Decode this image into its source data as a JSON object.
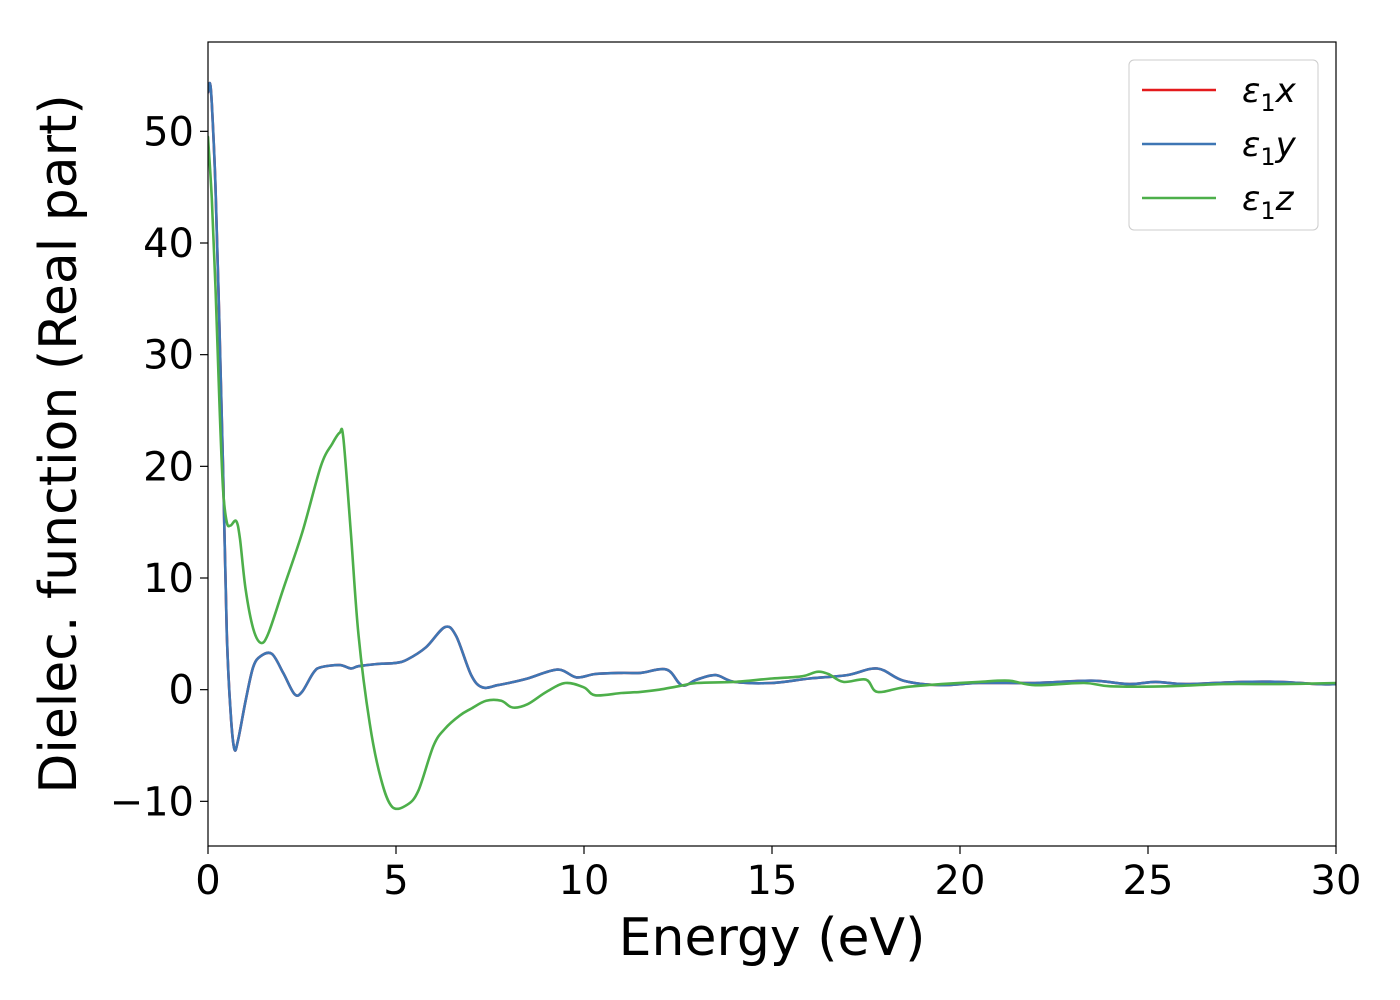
{
  "chart_data": {
    "type": "line",
    "title": "",
    "xlabel": "Energy (eV)",
    "ylabel": "Dielec. function (Real part)",
    "xlim": [
      0,
      30
    ],
    "ylim": [
      -14,
      58
    ],
    "xticks": [
      0,
      5,
      10,
      15,
      20,
      25,
      30
    ],
    "xtick_labels": [
      "0",
      "5",
      "10",
      "15",
      "20",
      "25",
      "30"
    ],
    "yticks": [
      -10,
      0,
      10,
      20,
      30,
      40,
      50
    ],
    "ytick_labels": [
      "−10",
      "0",
      "10",
      "20",
      "30",
      "40",
      "50"
    ],
    "grid": false,
    "legend_position": "top-right",
    "series": [
      {
        "name": "ε₁x",
        "name_base": "ε",
        "name_sub": "1",
        "name_var": "x",
        "color": "#e41a1c",
        "x": [
          0,
          0.05,
          0.1,
          0.2,
          0.3,
          0.4,
          0.5,
          0.6,
          0.7,
          0.8,
          1.0,
          1.2,
          1.4,
          1.7,
          2.0,
          2.3,
          2.5,
          2.8,
          3.0,
          3.5,
          3.8,
          4.0,
          4.5,
          5.0,
          5.3,
          5.8,
          6.3,
          6.6,
          7.0,
          7.3,
          7.7,
          8.0,
          8.5,
          9.3,
          9.8,
          10.3,
          11.0,
          11.5,
          12.2,
          12.6,
          13.0,
          13.5,
          14.0,
          15.0,
          16.0,
          17.0,
          17.8,
          18.5,
          19.5,
          20.5,
          22.0,
          23.5,
          24.5,
          25.2,
          26.0,
          27.5,
          28.5,
          29.5,
          30.0
        ],
        "y": [
          53.5,
          54.3,
          52.5,
          45,
          33,
          20,
          5,
          -2,
          -5.3,
          -4.5,
          -1,
          2,
          3,
          3.2,
          1.5,
          -0.4,
          -0.2,
          1.5,
          2.0,
          2.2,
          1.9,
          2.1,
          2.3,
          2.4,
          2.7,
          3.8,
          5.6,
          4.8,
          1.3,
          0.2,
          0.4,
          0.6,
          1.0,
          1.8,
          1.1,
          1.4,
          1.5,
          1.5,
          1.8,
          0.4,
          0.9,
          1.3,
          0.7,
          0.6,
          1.0,
          1.3,
          1.9,
          0.8,
          0.4,
          0.6,
          0.6,
          0.8,
          0.5,
          0.7,
          0.5,
          0.7,
          0.7,
          0.5,
          0.5
        ]
      },
      {
        "name": "ε₁y",
        "name_base": "ε",
        "name_sub": "1",
        "name_var": "y",
        "color": "#3e76b4",
        "x": [
          0,
          0.05,
          0.1,
          0.2,
          0.3,
          0.4,
          0.5,
          0.6,
          0.7,
          0.8,
          1.0,
          1.2,
          1.4,
          1.7,
          2.0,
          2.3,
          2.5,
          2.8,
          3.0,
          3.5,
          3.8,
          4.0,
          4.5,
          5.0,
          5.3,
          5.8,
          6.3,
          6.6,
          7.0,
          7.3,
          7.7,
          8.0,
          8.5,
          9.3,
          9.8,
          10.3,
          11.0,
          11.5,
          12.2,
          12.6,
          13.0,
          13.5,
          14.0,
          15.0,
          16.0,
          17.0,
          17.8,
          18.5,
          19.5,
          20.5,
          22.0,
          23.5,
          24.5,
          25.2,
          26.0,
          27.5,
          28.5,
          29.5,
          30.0
        ],
        "y": [
          53.5,
          54.3,
          52.5,
          45,
          33,
          20,
          5,
          -2,
          -5.3,
          -4.5,
          -1,
          2,
          3,
          3.2,
          1.5,
          -0.4,
          -0.2,
          1.5,
          2.0,
          2.2,
          1.9,
          2.1,
          2.3,
          2.4,
          2.7,
          3.8,
          5.6,
          4.8,
          1.3,
          0.2,
          0.4,
          0.6,
          1.0,
          1.8,
          1.1,
          1.4,
          1.5,
          1.5,
          1.8,
          0.4,
          0.9,
          1.3,
          0.7,
          0.6,
          1.0,
          1.3,
          1.9,
          0.8,
          0.4,
          0.6,
          0.6,
          0.8,
          0.5,
          0.7,
          0.5,
          0.7,
          0.7,
          0.5,
          0.5
        ]
      },
      {
        "name": "ε₁z",
        "name_base": "ε",
        "name_sub": "1",
        "name_var": "z",
        "color": "#4daf4a",
        "x": [
          0,
          0.1,
          0.2,
          0.3,
          0.4,
          0.5,
          0.6,
          0.75,
          0.85,
          1.0,
          1.2,
          1.4,
          1.6,
          2.0,
          2.5,
          3.0,
          3.3,
          3.5,
          3.6,
          3.8,
          4.0,
          4.3,
          4.6,
          4.9,
          5.3,
          5.6,
          6.0,
          6.3,
          6.7,
          7.0,
          7.4,
          7.8,
          8.1,
          8.5,
          9.0,
          9.5,
          10.0,
          10.3,
          11.0,
          11.5,
          12.0,
          12.5,
          13.0,
          14.0,
          15.0,
          15.8,
          16.2,
          16.5,
          16.9,
          17.5,
          17.8,
          18.5,
          19.5,
          20.5,
          21.3,
          22.0,
          23.3,
          24.0,
          25.5,
          27.0,
          28.5,
          30.0
        ],
        "y": [
          49.5,
          44,
          36,
          26,
          18,
          15,
          14.7,
          15.1,
          13.5,
          9,
          5.5,
          4.2,
          5.0,
          9,
          14,
          20,
          22,
          23.0,
          22.5,
          14,
          5,
          -3,
          -8,
          -10.5,
          -10.3,
          -9,
          -5,
          -3.5,
          -2.3,
          -1.7,
          -1.0,
          -1.0,
          -1.6,
          -1.3,
          -0.2,
          0.6,
          0.2,
          -0.5,
          -0.3,
          -0.2,
          0.0,
          0.3,
          0.6,
          0.7,
          1.0,
          1.2,
          1.6,
          1.4,
          0.7,
          0.9,
          -0.2,
          0.2,
          0.5,
          0.7,
          0.8,
          0.4,
          0.6,
          0.3,
          0.3,
          0.5,
          0.5,
          0.6
        ]
      }
    ]
  }
}
